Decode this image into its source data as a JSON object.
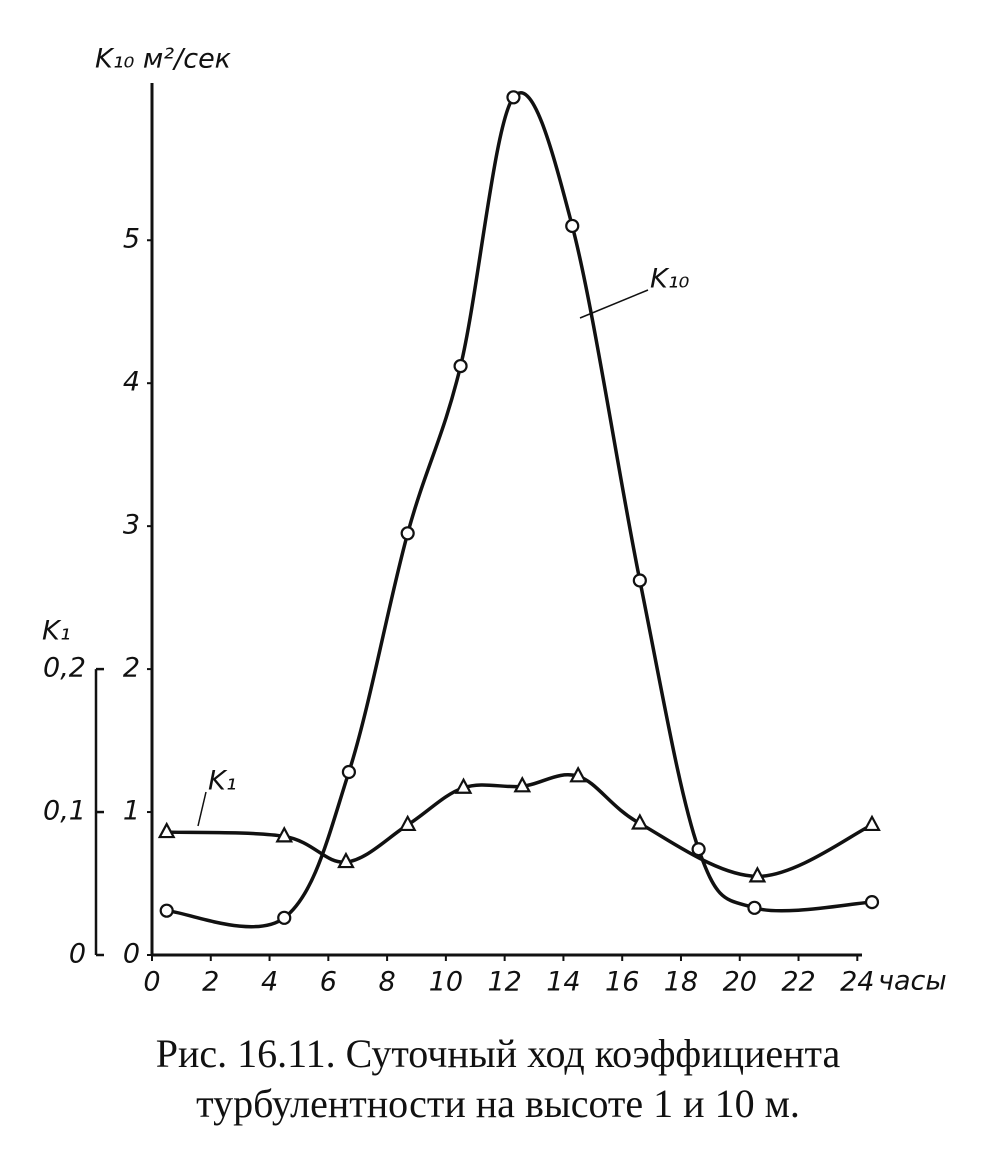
{
  "chart_data": {
    "type": "line",
    "y_label": "K₁₀ м²/сек",
    "y2_label": "K₁",
    "x_label": "часы",
    "caption": [
      "Рис. 16.11. Суточный ход коэффициента",
      "турбулентности на высоте 1 и 10 м."
    ],
    "xlim": [
      0,
      24.5
    ],
    "xticks": [
      0,
      2,
      4,
      6,
      8,
      10,
      12,
      14,
      16,
      18,
      20,
      22,
      24
    ],
    "ylim": [
      0,
      6.1
    ],
    "yticks": [
      0,
      1,
      2,
      3,
      4,
      5
    ],
    "y2lim": [
      0,
      0.61
    ],
    "y2ticks": [
      0,
      {
        "value": 0.1,
        "label": "0,1"
      },
      {
        "value": 0.2,
        "label": "0,2"
      }
    ],
    "series": [
      {
        "name": "K₁₀",
        "color": "#111111",
        "marker": "circle",
        "x": [
          0.5,
          4.5,
          6.7,
          8.7,
          10.5,
          12.3,
          14.3,
          16.6,
          18.6,
          20.5,
          24.5
        ],
        "values": [
          0.31,
          0.26,
          1.28,
          2.95,
          4.12,
          6.0,
          5.1,
          2.62,
          0.74,
          0.33,
          0.37
        ]
      },
      {
        "name": "K₁",
        "color": "#111111",
        "marker": "triangle",
        "axis": "y2",
        "x": [
          0.5,
          4.5,
          6.6,
          8.7,
          10.6,
          12.6,
          14.5,
          16.6,
          20.6,
          24.5
        ],
        "values": [
          0.086,
          0.083,
          0.065,
          0.091,
          0.117,
          0.118,
          0.125,
          0.092,
          0.055,
          0.091
        ]
      }
    ]
  }
}
